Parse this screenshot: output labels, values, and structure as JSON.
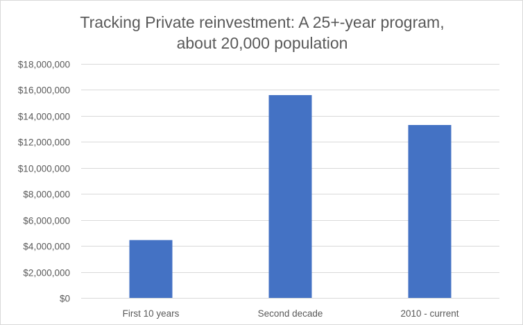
{
  "chart_data": {
    "type": "bar",
    "title_lines": [
      "Tracking Private reinvestment: A 25+-year program,",
      "about 20,000 population"
    ],
    "categories": [
      "First 10 years",
      "Second decade",
      "2010 - current"
    ],
    "values": [
      4450000,
      15600000,
      13300000
    ],
    "ylim": [
      0,
      18000000
    ],
    "yticks": [
      0,
      2000000,
      4000000,
      6000000,
      8000000,
      10000000,
      12000000,
      14000000,
      16000000,
      18000000
    ],
    "ytick_labels": [
      "$0",
      "$2,000,000",
      "$4,000,000",
      "$6,000,000",
      "$8,000,000",
      "$10,000,000",
      "$12,000,000",
      "$14,000,000",
      "$16,000,000",
      "$18,000,000"
    ],
    "xlabel": "",
    "ylabel": "",
    "grid": true,
    "legend": "none",
    "bar_color": "#4472c4",
    "grid_color": "#d9d9d9"
  }
}
